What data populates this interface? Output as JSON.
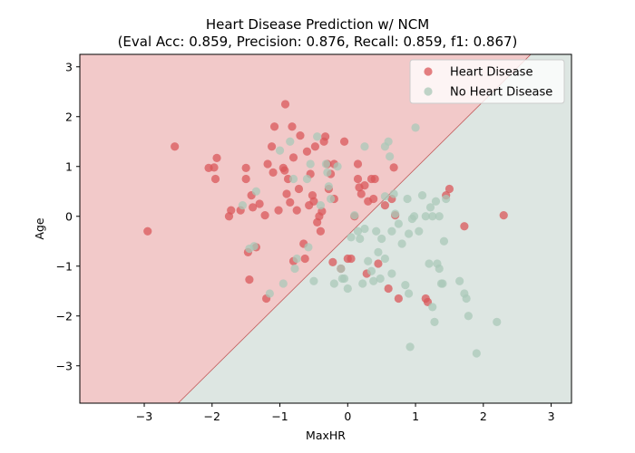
{
  "chart_data": {
    "type": "scatter",
    "title": "Heart Disease Prediction w/ NCM",
    "subtitle": "(Eval Acc: 0.859, Precision: 0.876, Recall: 0.859, f1: 0.867)",
    "xlabel": "MaxHR",
    "ylabel": "Age",
    "xlim": [
      -3.95,
      3.3
    ],
    "ylim": [
      -3.75,
      3.25
    ],
    "x_ticks": [
      -3,
      -2,
      -1,
      0,
      1,
      2,
      3
    ],
    "y_ticks": [
      -3,
      -2,
      -1,
      0,
      1,
      2,
      3
    ],
    "grid": false,
    "legend_position": "top-right",
    "decision_boundary": {
      "x": [
        -2.5,
        2.7
      ],
      "y": [
        -3.75,
        3.25
      ]
    },
    "regions": {
      "upper_left": "#f2c9c9",
      "lower_right": "#dde6e2"
    },
    "series": [
      {
        "name": "Heart Disease",
        "color": "#d9575a",
        "points": [
          [
            -2.95,
            -0.3
          ],
          [
            -2.55,
            1.4
          ],
          [
            -2.05,
            0.97
          ],
          [
            -1.97,
            0.98
          ],
          [
            -1.95,
            0.75
          ],
          [
            -1.93,
            1.17
          ],
          [
            -1.75,
            0.0
          ],
          [
            -1.72,
            0.12
          ],
          [
            -1.58,
            0.12
          ],
          [
            -1.5,
            0.97
          ],
          [
            -1.5,
            0.75
          ],
          [
            -1.47,
            -0.72
          ],
          [
            -1.45,
            -1.27
          ],
          [
            -1.42,
            0.42
          ],
          [
            -1.4,
            0.18
          ],
          [
            -1.35,
            -0.62
          ],
          [
            -1.3,
            0.25
          ],
          [
            -1.22,
            0.02
          ],
          [
            -1.2,
            -1.65
          ],
          [
            -1.18,
            1.05
          ],
          [
            -1.12,
            1.4
          ],
          [
            -1.1,
            0.88
          ],
          [
            -1.08,
            1.8
          ],
          [
            -1.02,
            0.12
          ],
          [
            -0.95,
            0.97
          ],
          [
            -0.93,
            0.92
          ],
          [
            -0.92,
            2.25
          ],
          [
            -0.9,
            0.45
          ],
          [
            -0.88,
            0.75
          ],
          [
            -0.85,
            0.28
          ],
          [
            -0.82,
            1.8
          ],
          [
            -0.8,
            -0.9
          ],
          [
            -0.8,
            1.18
          ],
          [
            -0.75,
            0.12
          ],
          [
            -0.72,
            0.55
          ],
          [
            -0.7,
            1.62
          ],
          [
            -0.65,
            -0.55
          ],
          [
            -0.63,
            -0.85
          ],
          [
            -0.6,
            1.3
          ],
          [
            -0.57,
            0.22
          ],
          [
            -0.55,
            0.85
          ],
          [
            -0.52,
            0.42
          ],
          [
            -0.5,
            0.3
          ],
          [
            -0.48,
            1.4
          ],
          [
            -0.45,
            -0.12
          ],
          [
            -0.42,
            0.0
          ],
          [
            -0.4,
            -0.3
          ],
          [
            -0.38,
            0.1
          ],
          [
            -0.35,
            1.5
          ],
          [
            -0.33,
            1.6
          ],
          [
            -0.3,
            1.05
          ],
          [
            -0.28,
            0.55
          ],
          [
            -0.25,
            0.85
          ],
          [
            -0.22,
            -0.92
          ],
          [
            -0.2,
            1.05
          ],
          [
            -0.2,
            0.35
          ],
          [
            -0.1,
            -1.05
          ],
          [
            -0.05,
            1.5
          ],
          [
            0.0,
            -0.85
          ],
          [
            0.05,
            -0.85
          ],
          [
            0.1,
            0.0
          ],
          [
            0.15,
            1.05
          ],
          [
            0.15,
            0.75
          ],
          [
            0.17,
            0.58
          ],
          [
            0.2,
            0.45
          ],
          [
            0.25,
            0.62
          ],
          [
            0.28,
            -1.15
          ],
          [
            0.3,
            0.3
          ],
          [
            0.35,
            0.75
          ],
          [
            0.38,
            0.35
          ],
          [
            0.4,
            0.75
          ],
          [
            0.45,
            -0.95
          ],
          [
            0.55,
            0.22
          ],
          [
            0.6,
            -1.45
          ],
          [
            0.65,
            0.35
          ],
          [
            0.68,
            0.98
          ],
          [
            0.7,
            0.02
          ],
          [
            0.75,
            -1.65
          ],
          [
            1.15,
            -1.65
          ],
          [
            1.18,
            -1.72
          ],
          [
            1.45,
            0.42
          ],
          [
            1.5,
            0.55
          ],
          [
            1.72,
            -0.2
          ],
          [
            2.3,
            0.02
          ]
        ]
      },
      {
        "name": "No Heart Disease",
        "color": "#a9c8b8",
        "points": [
          [
            -1.55,
            0.22
          ],
          [
            -1.45,
            -0.65
          ],
          [
            -1.38,
            -0.6
          ],
          [
            -1.35,
            0.5
          ],
          [
            -1.15,
            -1.55
          ],
          [
            -1.0,
            1.32
          ],
          [
            -0.95,
            -1.35
          ],
          [
            -0.85,
            1.5
          ],
          [
            -0.8,
            0.75
          ],
          [
            -0.78,
            -1.05
          ],
          [
            -0.75,
            -0.85
          ],
          [
            -0.6,
            0.75
          ],
          [
            -0.58,
            -0.62
          ],
          [
            -0.55,
            1.05
          ],
          [
            -0.5,
            -1.3
          ],
          [
            -0.45,
            1.6
          ],
          [
            -0.4,
            0.22
          ],
          [
            -0.32,
            1.05
          ],
          [
            -0.3,
            0.88
          ],
          [
            -0.28,
            0.6
          ],
          [
            -0.25,
            0.35
          ],
          [
            -0.2,
            -1.35
          ],
          [
            -0.15,
            1.0
          ],
          [
            -0.1,
            -1.05
          ],
          [
            -0.08,
            -1.25
          ],
          [
            -0.05,
            -1.25
          ],
          [
            0.0,
            -1.45
          ],
          [
            0.05,
            -0.42
          ],
          [
            0.1,
            0.02
          ],
          [
            0.15,
            -0.3
          ],
          [
            0.18,
            -0.45
          ],
          [
            0.22,
            -1.35
          ],
          [
            0.25,
            1.4
          ],
          [
            0.25,
            -0.25
          ],
          [
            0.3,
            -0.9
          ],
          [
            0.35,
            -1.1
          ],
          [
            0.38,
            -1.3
          ],
          [
            0.42,
            -0.3
          ],
          [
            0.45,
            -0.72
          ],
          [
            0.48,
            -1.25
          ],
          [
            0.5,
            -0.45
          ],
          [
            0.55,
            1.4
          ],
          [
            0.55,
            0.4
          ],
          [
            0.55,
            -0.85
          ],
          [
            0.6,
            1.5
          ],
          [
            0.62,
            1.2
          ],
          [
            0.65,
            -0.3
          ],
          [
            0.65,
            -1.15
          ],
          [
            0.68,
            0.45
          ],
          [
            0.7,
            0.05
          ],
          [
            0.75,
            -0.15
          ],
          [
            0.8,
            -0.55
          ],
          [
            0.85,
            -1.38
          ],
          [
            0.88,
            0.35
          ],
          [
            0.9,
            -0.35
          ],
          [
            0.9,
            -1.55
          ],
          [
            0.92,
            -2.62
          ],
          [
            0.95,
            -0.05
          ],
          [
            0.98,
            0.0
          ],
          [
            1.0,
            1.78
          ],
          [
            1.05,
            -0.3
          ],
          [
            1.1,
            0.42
          ],
          [
            1.15,
            0.0
          ],
          [
            1.2,
            -0.95
          ],
          [
            1.22,
            0.18
          ],
          [
            1.25,
            0.0
          ],
          [
            1.25,
            -1.82
          ],
          [
            1.28,
            -2.12
          ],
          [
            1.3,
            0.3
          ],
          [
            1.32,
            -0.95
          ],
          [
            1.35,
            0.0
          ],
          [
            1.35,
            -1.05
          ],
          [
            1.38,
            -1.35
          ],
          [
            1.4,
            -1.35
          ],
          [
            1.42,
            -0.5
          ],
          [
            1.45,
            0.35
          ],
          [
            1.65,
            -1.3
          ],
          [
            1.72,
            -1.55
          ],
          [
            1.75,
            -1.65
          ],
          [
            1.78,
            -2.0
          ],
          [
            1.9,
            -2.75
          ],
          [
            2.2,
            -2.12
          ]
        ]
      }
    ]
  }
}
